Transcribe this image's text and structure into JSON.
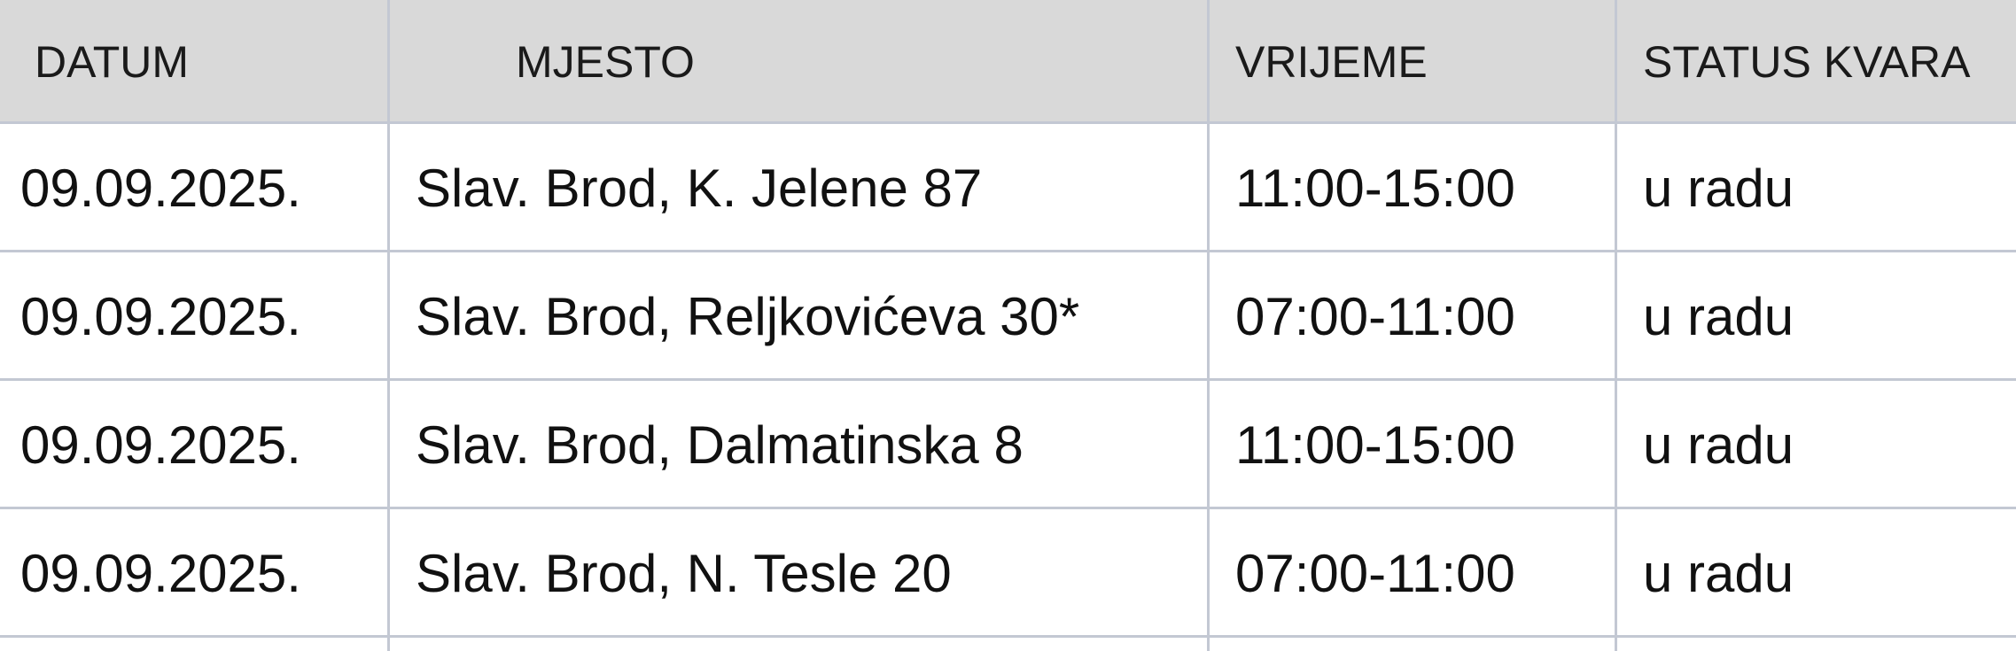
{
  "header": {
    "columns": [
      "DATUM",
      "MJESTO",
      "VRIJEME",
      "STATUS KVARA"
    ]
  },
  "table": {
    "rows": [
      [
        "09.09.2025.",
        "Slav. Brod, K. Jelene 87",
        "11:00-15:00",
        "u radu"
      ],
      [
        "09.09.2025.",
        "Slav. Brod, Reljkovićeva 30*",
        "07:00-11:00",
        "u radu"
      ],
      [
        "09.09.2025.",
        "Slav. Brod, Dalmatinska 8",
        "11:00-15:00",
        "u radu"
      ],
      [
        "09.09.2025.",
        "Slav. Brod, N. Tesle 20",
        "07:00-11:00",
        "u radu"
      ]
    ]
  }
}
